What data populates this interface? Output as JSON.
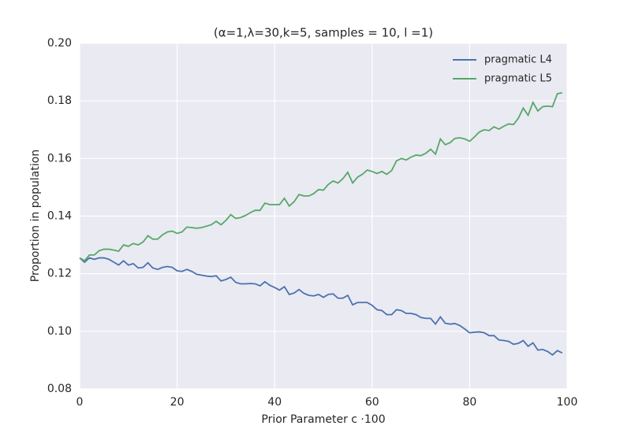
{
  "chart_data": {
    "type": "line",
    "title": "(α=1,λ=30,k=5, samples = 10, l =1)",
    "x_label": "Prior Parameter c ·100",
    "y_label": "Proportion in population",
    "x": [
      0,
      1,
      2,
      3,
      4,
      5,
      6,
      7,
      8,
      9,
      10,
      11,
      12,
      13,
      14,
      15,
      16,
      17,
      18,
      19,
      20,
      21,
      22,
      23,
      24,
      25,
      26,
      27,
      28,
      29,
      30,
      31,
      32,
      33,
      34,
      35,
      36,
      37,
      38,
      39,
      40,
      41,
      42,
      43,
      44,
      45,
      46,
      47,
      48,
      49,
      50,
      51,
      52,
      53,
      54,
      55,
      56,
      57,
      58,
      59,
      60,
      61,
      62,
      63,
      64,
      65,
      66,
      67,
      68,
      69,
      70,
      71,
      72,
      73,
      74,
      75,
      76,
      77,
      78,
      79,
      80,
      81,
      82,
      83,
      84,
      85,
      86,
      87,
      88,
      89,
      90,
      91,
      92,
      93,
      94,
      95,
      96,
      97,
      98,
      99
    ],
    "series": [
      {
        "name": "pragmatic L4",
        "color": "#4c72b0",
        "values": [
          0.1255,
          0.124,
          0.1255,
          0.125,
          0.1255,
          0.1255,
          0.125,
          0.124,
          0.123,
          0.1245,
          0.123,
          0.1235,
          0.122,
          0.1222,
          0.1238,
          0.122,
          0.1215,
          0.1222,
          0.1225,
          0.1222,
          0.121,
          0.1208,
          0.1215,
          0.1208,
          0.1198,
          0.1195,
          0.1192,
          0.119,
          0.1193,
          0.1175,
          0.118,
          0.1188,
          0.117,
          0.1165,
          0.1165,
          0.1166,
          0.1165,
          0.1158,
          0.1172,
          0.116,
          0.1152,
          0.1143,
          0.1155,
          0.1128,
          0.1133,
          0.1145,
          0.1132,
          0.1125,
          0.1123,
          0.1128,
          0.1118,
          0.1128,
          0.113,
          0.1115,
          0.1115,
          0.1125,
          0.1092,
          0.11,
          0.11,
          0.11,
          0.109,
          0.1075,
          0.1072,
          0.1058,
          0.1058,
          0.1075,
          0.1072,
          0.1062,
          0.1062,
          0.1058,
          0.1048,
          0.1045,
          0.1045,
          0.1025,
          0.105,
          0.1028,
          0.1025,
          0.1027,
          0.102,
          0.1008,
          0.0995,
          0.0997,
          0.0998,
          0.0995,
          0.0985,
          0.0985,
          0.097,
          0.0968,
          0.0965,
          0.0955,
          0.0958,
          0.0968,
          0.0948,
          0.096,
          0.0935,
          0.0937,
          0.093,
          0.0918,
          0.0933,
          0.0925
        ]
      },
      {
        "name": "pragmatic L5",
        "color": "#55a868",
        "values": [
          0.1255,
          0.1245,
          0.1265,
          0.1265,
          0.128,
          0.1285,
          0.1285,
          0.1282,
          0.1278,
          0.13,
          0.1295,
          0.1305,
          0.13,
          0.131,
          0.1332,
          0.132,
          0.132,
          0.1335,
          0.1345,
          0.1348,
          0.134,
          0.1345,
          0.1362,
          0.136,
          0.1358,
          0.136,
          0.1365,
          0.137,
          0.1382,
          0.137,
          0.1385,
          0.1405,
          0.1392,
          0.1395,
          0.1402,
          0.1412,
          0.142,
          0.142,
          0.1445,
          0.144,
          0.144,
          0.144,
          0.1462,
          0.1435,
          0.145,
          0.1475,
          0.147,
          0.147,
          0.1478,
          0.1492,
          0.149,
          0.151,
          0.1522,
          0.1515,
          0.153,
          0.1552,
          0.1515,
          0.1535,
          0.1545,
          0.156,
          0.1555,
          0.1548,
          0.1555,
          0.1545,
          0.1558,
          0.1592,
          0.16,
          0.1595,
          0.1605,
          0.1612,
          0.161,
          0.1618,
          0.1632,
          0.1615,
          0.1668,
          0.1648,
          0.1655,
          0.167,
          0.1672,
          0.1668,
          0.166,
          0.1675,
          0.1692,
          0.17,
          0.1697,
          0.171,
          0.1702,
          0.1712,
          0.172,
          0.1718,
          0.174,
          0.1775,
          0.175,
          0.1795,
          0.1765,
          0.178,
          0.1782,
          0.178,
          0.1825,
          0.1828
        ]
      }
    ],
    "xlim": [
      0,
      100
    ],
    "xticks": [
      0,
      20,
      40,
      60,
      80,
      100
    ],
    "ylim": [
      0.08,
      0.2
    ],
    "yticks": [
      {
        "value": 0.08,
        "label": "0.08"
      },
      {
        "value": 0.1,
        "label": "0.10"
      },
      {
        "value": 0.12,
        "label": "0.12"
      },
      {
        "value": 0.14,
        "label": "0.14"
      },
      {
        "value": 0.16,
        "label": "0.16"
      },
      {
        "value": 0.18,
        "label": "0.18"
      },
      {
        "value": 0.2,
        "label": "0.20"
      }
    ],
    "grid": true,
    "legend": "upper right"
  }
}
